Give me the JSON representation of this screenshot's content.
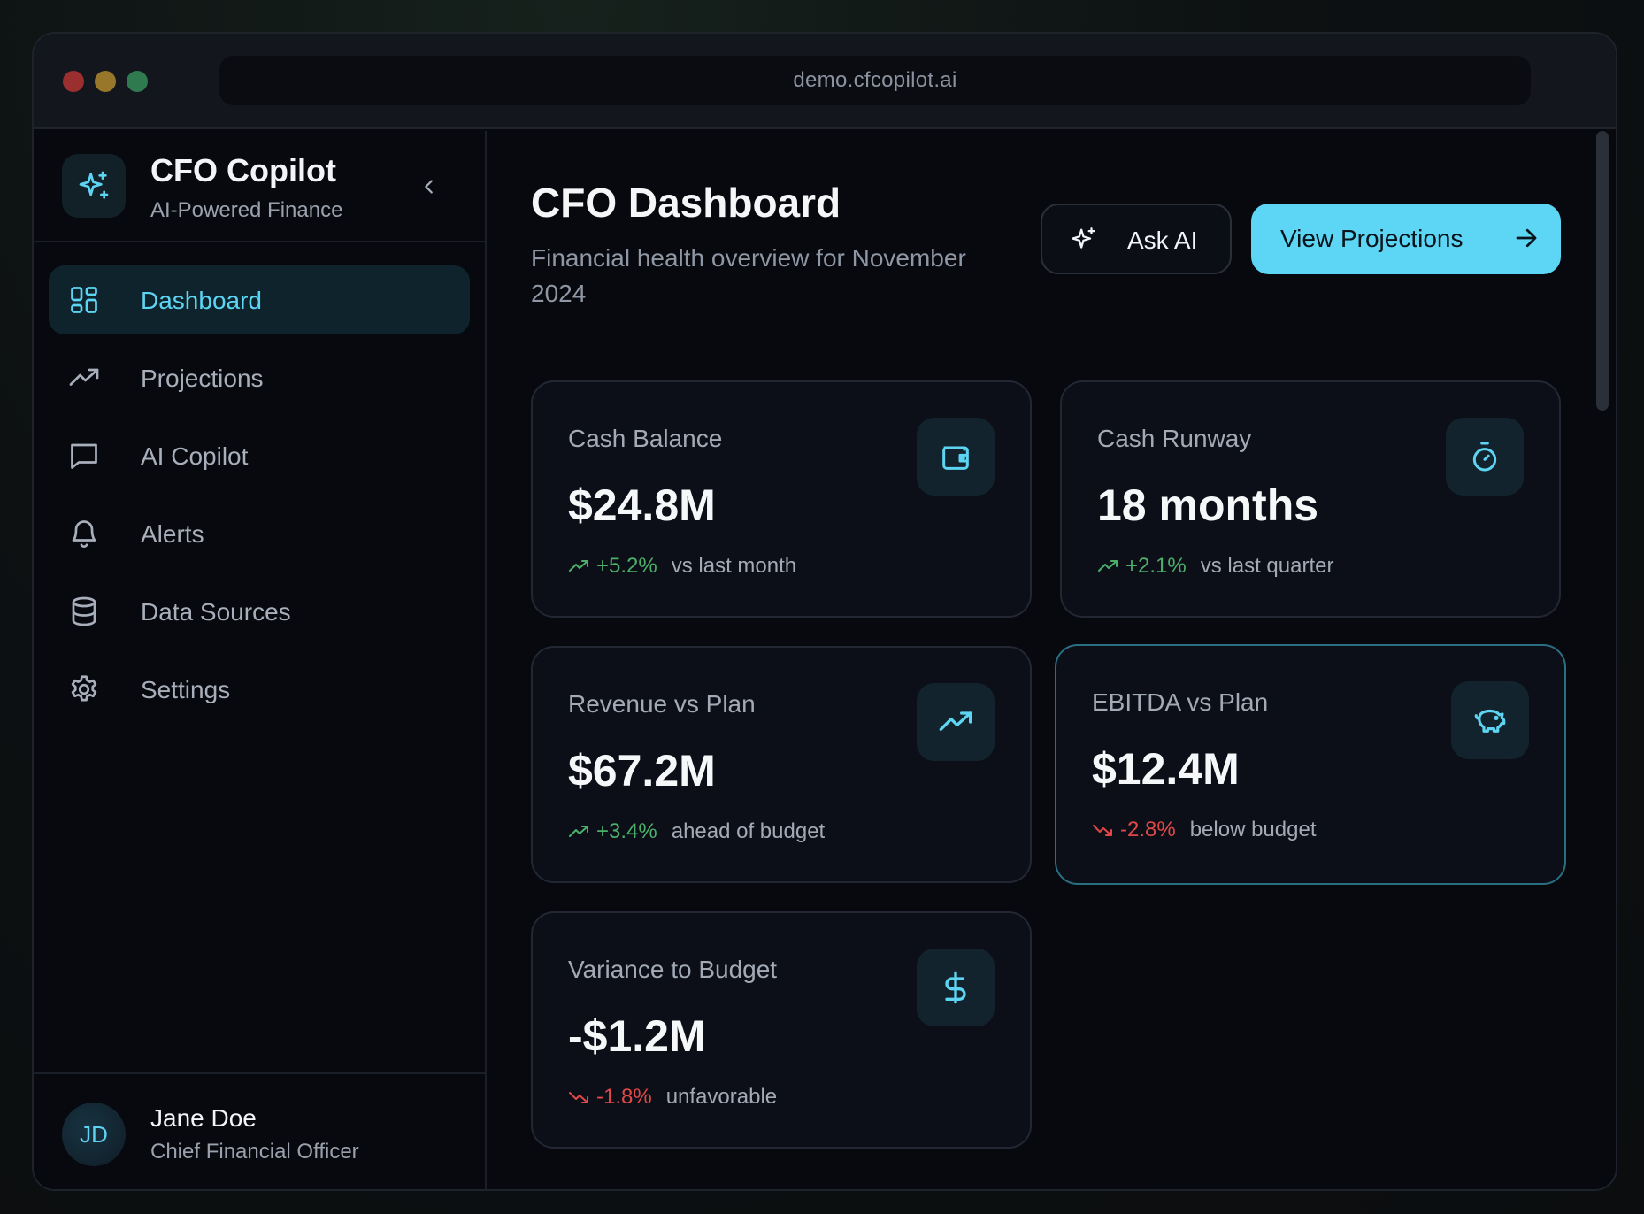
{
  "browser": {
    "url": "demo.cfcopilot.ai"
  },
  "brand": {
    "name": "CFO Copilot",
    "tagline": "AI-Powered Finance"
  },
  "nav": {
    "items": [
      {
        "label": "Dashboard",
        "icon": "dashboard-grid-icon",
        "active": true
      },
      {
        "label": "Projections",
        "icon": "trending-up-icon"
      },
      {
        "label": "AI Copilot",
        "icon": "chat-icon"
      },
      {
        "label": "Alerts",
        "icon": "bell-icon"
      },
      {
        "label": "Data Sources",
        "icon": "database-icon"
      },
      {
        "label": "Settings",
        "icon": "gear-icon"
      }
    ]
  },
  "user": {
    "initials": "JD",
    "name": "Jane Doe",
    "role": "Chief Financial Officer"
  },
  "header": {
    "title": "CFO Dashboard",
    "subtitle": "Financial health overview for November 2024",
    "ask_ai_label": "Ask AI",
    "view_projections_label": "View Projections"
  },
  "colors": {
    "accent": "#5dd6f5",
    "positive": "#4caf6a",
    "negative": "#e04848"
  },
  "cards": [
    {
      "title": "Cash Balance",
      "value": "$24.8M",
      "change": "+5.2%",
      "context": "vs last month",
      "direction": "up",
      "icon": "wallet-icon"
    },
    {
      "title": "Cash Runway",
      "value": "18 months",
      "change": "+2.1%",
      "context": "vs last quarter",
      "direction": "up",
      "icon": "timer-icon"
    },
    {
      "title": "Revenue vs Plan",
      "value": "$67.2M",
      "change": "+3.4%",
      "context": "ahead of budget",
      "direction": "up",
      "icon": "trending-up-icon"
    },
    {
      "title": "EBITDA vs Plan",
      "value": "$12.4M",
      "change": "-2.8%",
      "context": "below budget",
      "direction": "down",
      "icon": "piggy-bank-icon"
    },
    {
      "title": "Variance to Budget",
      "value": "-$1.2M",
      "change": "-1.8%",
      "context": "unfavorable",
      "direction": "down",
      "icon": "dollar-icon"
    }
  ]
}
